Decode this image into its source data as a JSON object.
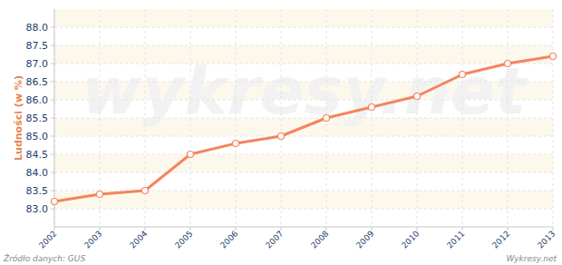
{
  "chart_data": {
    "type": "line",
    "y_label": "Ludności (w %)",
    "source": "Źródło danych:  GUS",
    "credit": "Wykresy.net",
    "watermark": "wykresy.net",
    "categories": [
      "2002",
      "2003",
      "2004",
      "2005",
      "2006",
      "2007",
      "2008",
      "2009",
      "2010",
      "2011",
      "2012",
      "2013"
    ],
    "values": [
      83.2,
      83.4,
      83.5,
      84.5,
      84.8,
      85.0,
      85.5,
      85.8,
      86.1,
      86.7,
      87.0,
      87.2
    ],
    "color": "#f4845f",
    "marker": "circle",
    "ylim": [
      82.5,
      88.5
    ],
    "yticks": [
      {
        "value": 83,
        "label": "83.0"
      },
      83.5,
      {
        "value": 84,
        "label": "84.0"
      },
      84.5,
      {
        "value": 85,
        "label": "85.0"
      },
      85.5,
      {
        "value": 86,
        "label": "86.0"
      },
      86.5,
      {
        "value": 87,
        "label": "87.0"
      },
      87.5,
      {
        "value": 88,
        "label": "88.0"
      }
    ],
    "grid": true
  }
}
